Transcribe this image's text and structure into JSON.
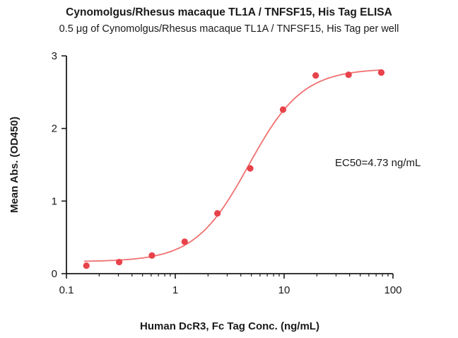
{
  "chart_data": {
    "type": "scatter",
    "title": "Cynomolgus/Rhesus macaque TL1A / TNFSF15, His Tag  ELISA",
    "subtitle": "0.5 μg of Cynomolgus/Rhesus macaque TL1A / TNFSF15, His Tag  per well",
    "xlabel": "Human DcR3, Fc Tag Conc. (ng/mL)",
    "ylabel": "Mean Abs. (OD450)",
    "x_scale": "log",
    "xlim": [
      0.1,
      100
    ],
    "ylim": [
      0,
      3
    ],
    "x_ticks": [
      0.1,
      1,
      10,
      100
    ],
    "x_tick_labels": [
      "0.1",
      "1",
      "10",
      "100"
    ],
    "y_ticks": [
      0,
      1,
      2,
      3
    ],
    "y_tick_labels": [
      "0",
      "1",
      "2",
      "3"
    ],
    "grid": false,
    "series": [
      {
        "x": [
          0.1525,
          0.305,
          0.61,
          1.22,
          2.44,
          4.88,
          9.77,
          19.5,
          39.1,
          78.1
        ],
        "y": [
          0.11,
          0.16,
          0.25,
          0.44,
          0.83,
          1.45,
          2.26,
          2.73,
          2.74,
          2.77
        ],
        "color": "#e8424a",
        "fit": {
          "model": "4PL",
          "bottom": 0.165,
          "top": 2.825,
          "ec50": 4.73,
          "hill": 1.75,
          "color": "#f07070"
        }
      }
    ],
    "annotations": [
      {
        "text": "EC50=4.73 ng/mL"
      }
    ]
  }
}
